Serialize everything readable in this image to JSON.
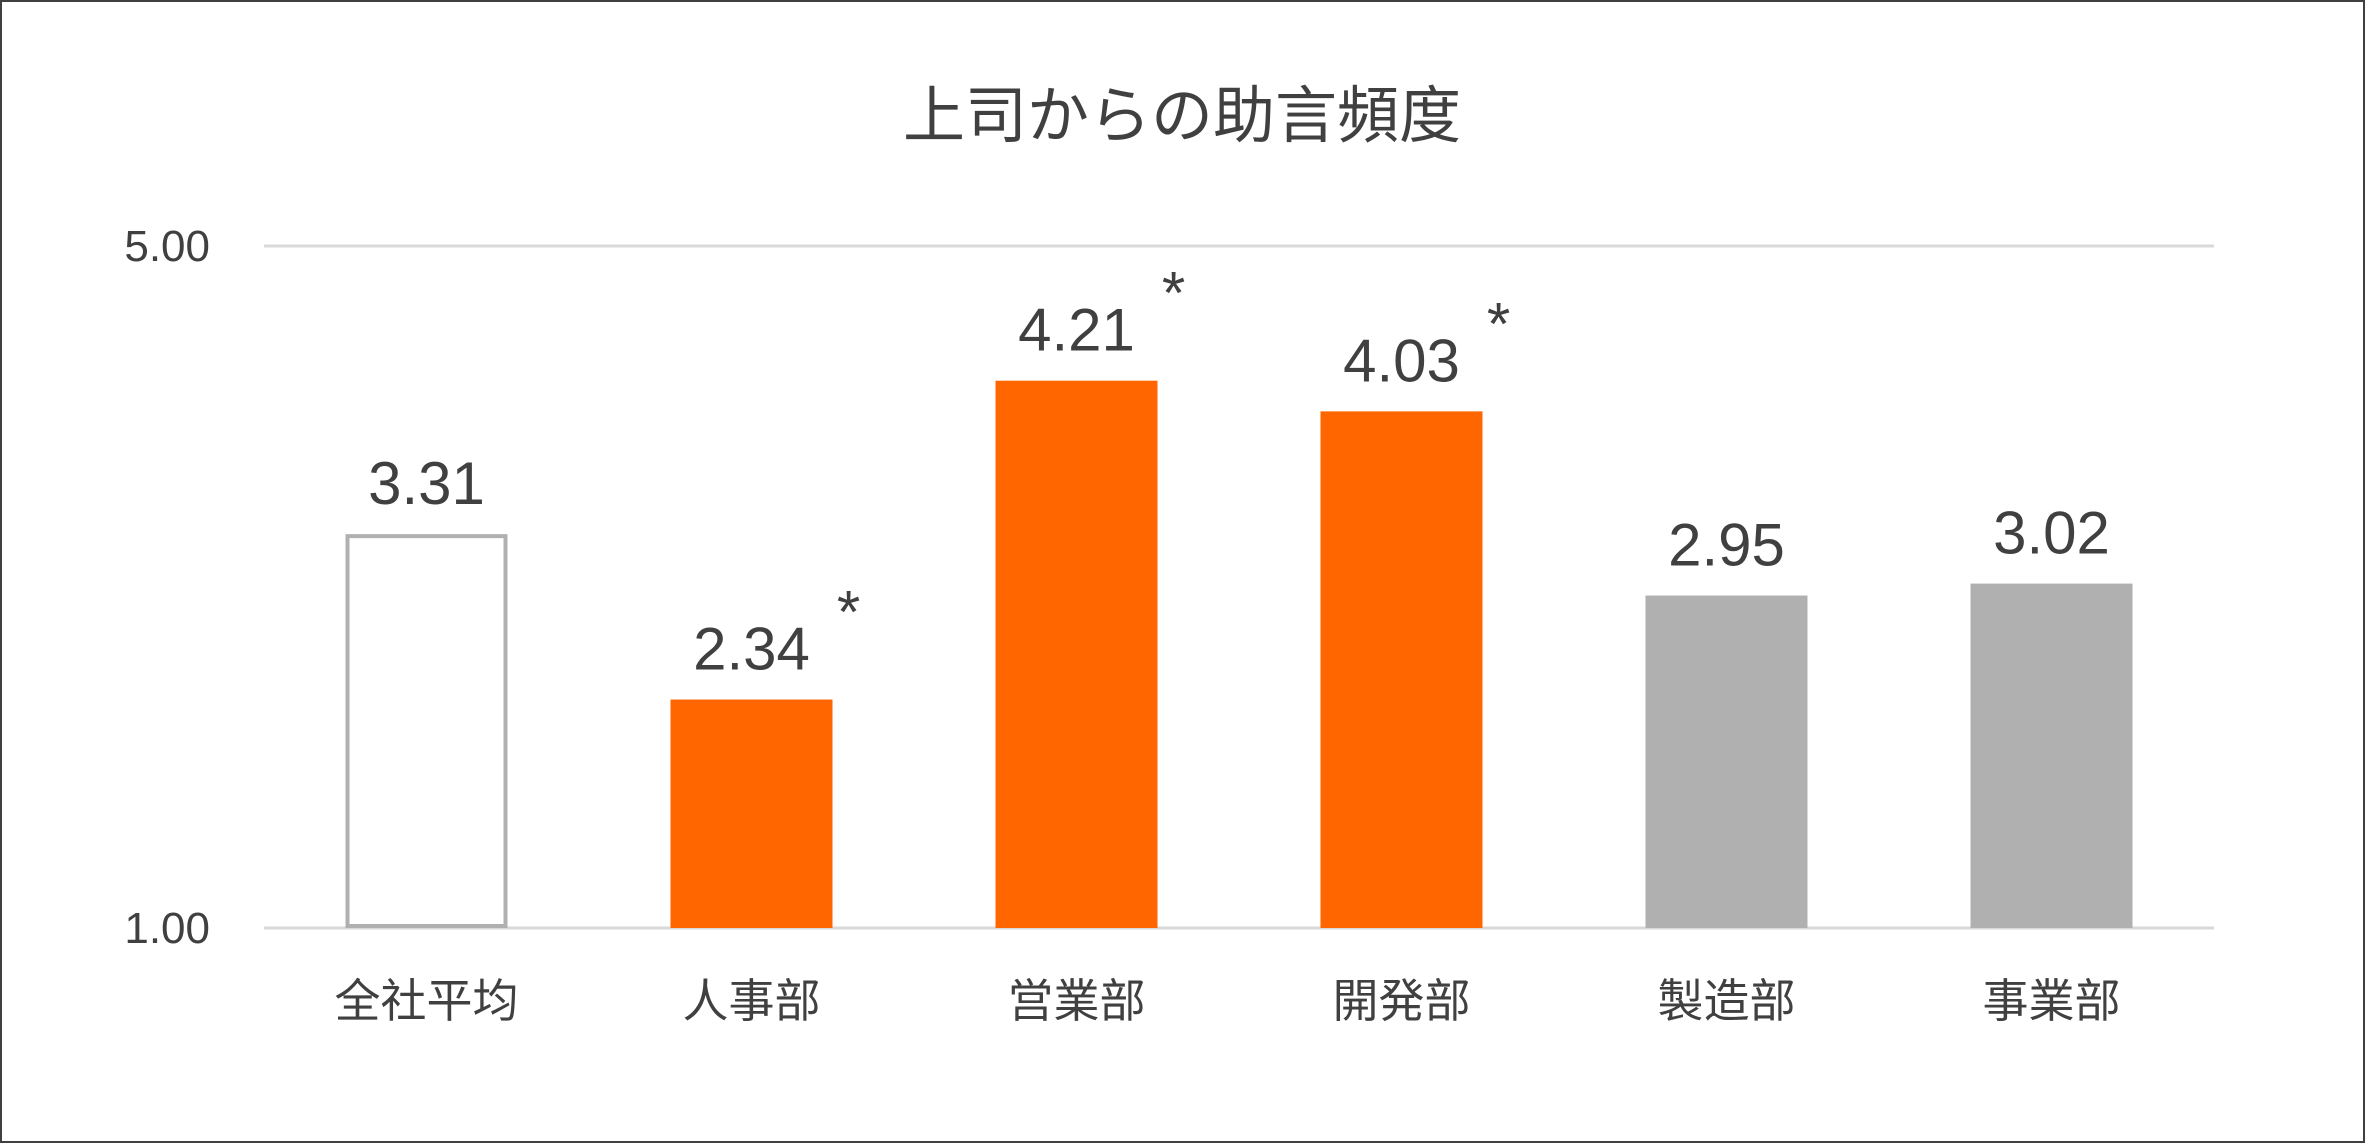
{
  "chart_data": {
    "type": "bar",
    "title": "上司からの助言頻度",
    "categories": [
      "全社平均",
      "人事部",
      "営業部",
      "開発部",
      "製造部",
      "事業部"
    ],
    "values": [
      3.31,
      2.34,
      4.21,
      4.03,
      2.95,
      3.02
    ],
    "value_labels": [
      "3.31",
      "2.34",
      "4.21",
      "4.03",
      "2.95",
      "3.02"
    ],
    "significance_marks": [
      "",
      "*",
      "*",
      "*",
      "",
      ""
    ],
    "ylim": [
      1.0,
      5.0
    ],
    "y_ticks": [
      1.0,
      5.0
    ],
    "y_tick_labels": [
      "1.00",
      "5.00"
    ],
    "grid": true,
    "legend": "none",
    "bar_styles": [
      "outline",
      "highlight",
      "highlight",
      "highlight",
      "neutral",
      "neutral"
    ],
    "colors": {
      "highlight": "#ff6600",
      "neutral": "#b0b0b0",
      "outline": "#b0b0b0",
      "gridline": "#d9d9d9",
      "text": "#404040"
    }
  }
}
